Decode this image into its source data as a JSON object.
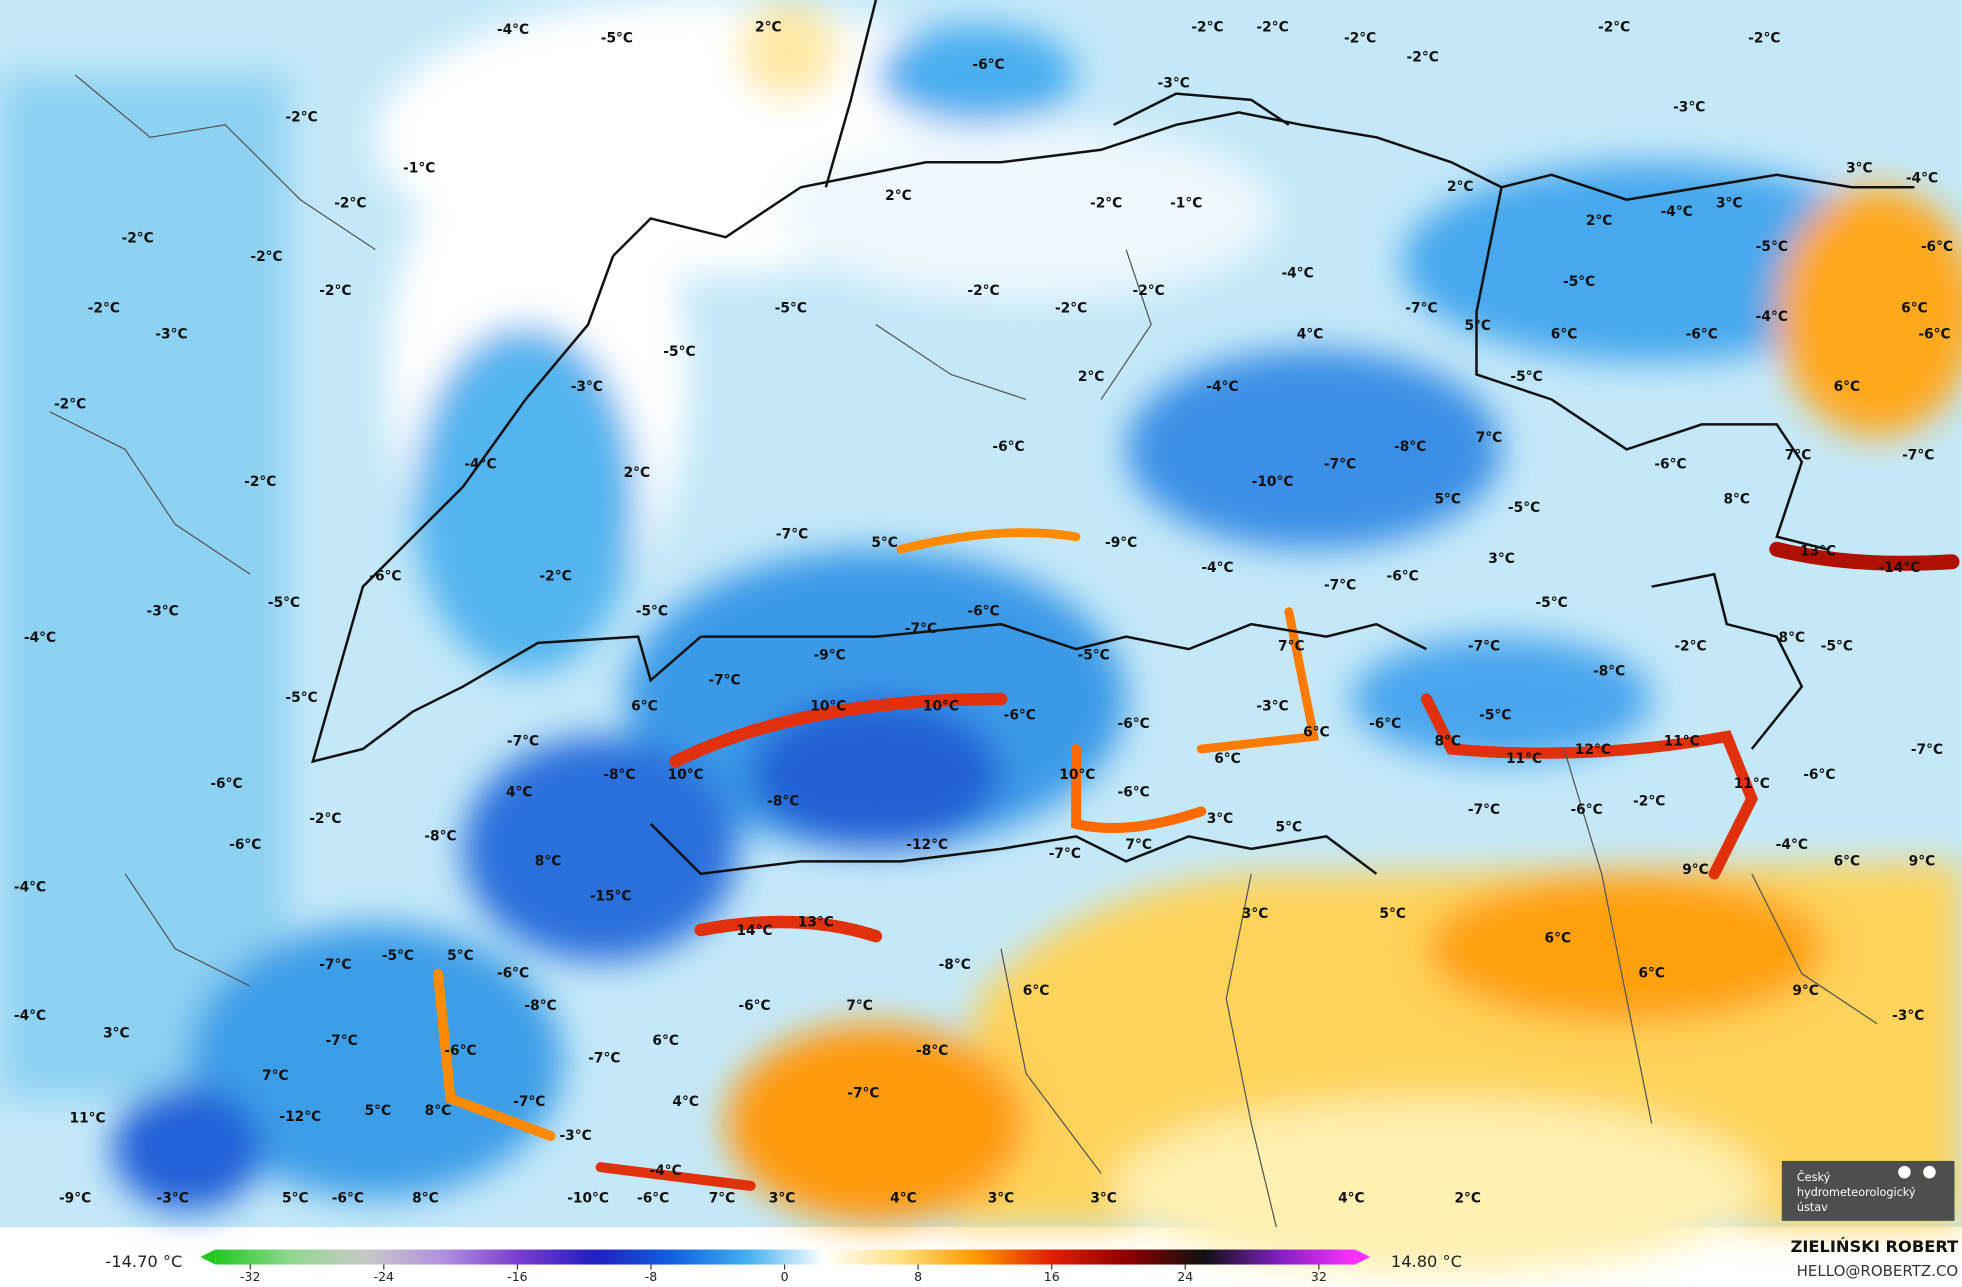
{
  "map": {
    "labels": [
      "-4°C",
      "-5°C",
      "2°C",
      "-6°C",
      "-2°C",
      "-2°C",
      "-2°C",
      "-2°C",
      "-2°C",
      "-2°C",
      "-3°C",
      "-3°C",
      "-2°C",
      "-1°C",
      "-2°C",
      "2°C",
      "-2°C",
      "-1°C",
      "2°C",
      "3°C",
      "-4°C",
      "-2°C",
      "-2°C",
      "-2°C",
      "-2°C",
      "-3°C",
      "-5°C",
      "-2°C",
      "-2°C",
      "-2°C",
      "-4°C",
      "-7°C",
      "2°C",
      "-4°C",
      "3°C",
      "-5°C",
      "-6°C",
      "-5°C",
      "-4°C",
      "6°C",
      "-6°C",
      "-5°C",
      "4°C",
      "5°C",
      "6°C",
      "-6°C",
      "-2°C",
      "-3°C",
      "2°C",
      "-4°C",
      "-5°C",
      "6°C",
      "-4°C",
      "2°C",
      "-2°C",
      "-6°C",
      "-8°C",
      "-7°C",
      "-10°C",
      "7°C",
      "-6°C",
      "7°C",
      "-7°C",
      "5°C",
      "-5°C",
      "8°C",
      "-7°C",
      "5°C",
      "-9°C",
      "3°C",
      "13°C",
      "-14°C",
      "-2°C",
      "-6°C",
      "-4°C",
      "-7°C",
      "-6°C",
      "-3°C",
      "-5°C",
      "-5°C",
      "-6°C",
      "-7°C",
      "-5°C",
      "-4°C",
      "-9°C",
      "-5°C",
      "7°C",
      "-7°C",
      "-2°C",
      "8°C",
      "-5°C",
      "-7°C",
      "-5°C",
      "6°C",
      "10°C",
      "10°C",
      "-8°C",
      "-6°C",
      "-3°C",
      "-6°C",
      "-5°C",
      "-6°C",
      "6°C",
      "-7°C",
      "8°C",
      "11°C",
      "12°C",
      "11°C",
      "-7°C",
      "6°C",
      "-6°C",
      "-8°C",
      "10°C",
      "10°C",
      "-6°C",
      "11°C",
      "-6°C",
      "4°C",
      "-8°C",
      "-2°C",
      "3°C",
      "5°C",
      "-7°C",
      "-6°C",
      "-2°C",
      "-8°C",
      "-6°C",
      "-12°C",
      "-7°C",
      "7°C",
      "-4°C",
      "8°C",
      "6°C",
      "9°C",
      "9°C",
      "-4°C",
      "-15°C",
      "3°C",
      "5°C",
      "14°C",
      "13°C",
      "6°C",
      "-7°C",
      "-5°C",
      "5°C",
      "-6°C",
      "-8°C",
      "6°C",
      "6°C",
      "9°C",
      "-8°C",
      "-6°C",
      "7°C",
      "-3°C",
      "-4°C",
      "3°C",
      "-7°C",
      "-6°C",
      "6°C",
      "-8°C",
      "-7°C",
      "7°C",
      "-7°C",
      "-7°C",
      "4°C",
      "-12°C",
      "5°C",
      "8°C",
      "-3°C",
      "11°C",
      "-4°C",
      "-9°C",
      "-3°C",
      "5°C",
      "-6°C",
      "8°C",
      "-10°C",
      "-6°C",
      "7°C",
      "3°C",
      "4°C",
      "3°C",
      "3°C",
      "4°C",
      "2°C"
    ]
  },
  "colorbar": {
    "min_label": "-14.70 °C",
    "max_label": "14.80 °C",
    "clim": [
      -32,
      32
    ],
    "ticks": [
      -32,
      -24,
      -16,
      -8,
      0,
      8,
      16,
      24,
      32
    ],
    "colors": [
      "#22c822",
      "#8fd88f",
      "#c8c8c8",
      "#b090e0",
      "#7a3cd0",
      "#2020c0",
      "#1060e0",
      "#40b0f0",
      "#ffffff",
      "#ffe080",
      "#ff9a00",
      "#e02000",
      "#900000",
      "#101010",
      "#8020c0",
      "#ff30ff"
    ]
  },
  "credits": {
    "author": "ZIELIŃSKI ROBERT",
    "contact": "HELLO@ROBERTZ.CO"
  },
  "logo": {
    "lines": [
      "Český",
      "hydrometeorologický",
      "ústav"
    ]
  }
}
